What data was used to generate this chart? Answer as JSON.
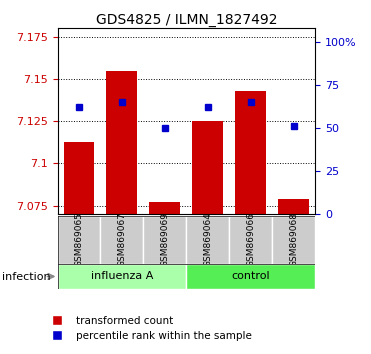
{
  "title": "GDS4825 / ILMN_1827492",
  "samples": [
    "GSM869065",
    "GSM869067",
    "GSM869069",
    "GSM869064",
    "GSM869066",
    "GSM869068"
  ],
  "transformed_counts": [
    7.113,
    7.155,
    7.077,
    7.125,
    7.143,
    7.079
  ],
  "percentile_ranks_pct": [
    62,
    65,
    50,
    62,
    65,
    51
  ],
  "bar_color": "#cc0000",
  "dot_color": "#0000cc",
  "ylim_left": [
    7.07,
    7.18
  ],
  "yticks_left": [
    7.075,
    7.1,
    7.125,
    7.15,
    7.175
  ],
  "ylim_right": [
    0,
    108
  ],
  "yticks_right": [
    0,
    25,
    50,
    75,
    100
  ],
  "ylabel_left_color": "#cc0000",
  "ylabel_right_color": "#0000cc",
  "bar_bottom": 7.07,
  "group_labels": [
    "influenza A",
    "control"
  ],
  "group_ranges": [
    [
      0,
      3
    ],
    [
      3,
      6
    ]
  ],
  "group_fill_colors": [
    "#aaffaa",
    "#55ee55"
  ],
  "tick_bg": "#cccccc",
  "legend_items": [
    "transformed count",
    "percentile rank within the sample"
  ],
  "infection_label": "infection"
}
